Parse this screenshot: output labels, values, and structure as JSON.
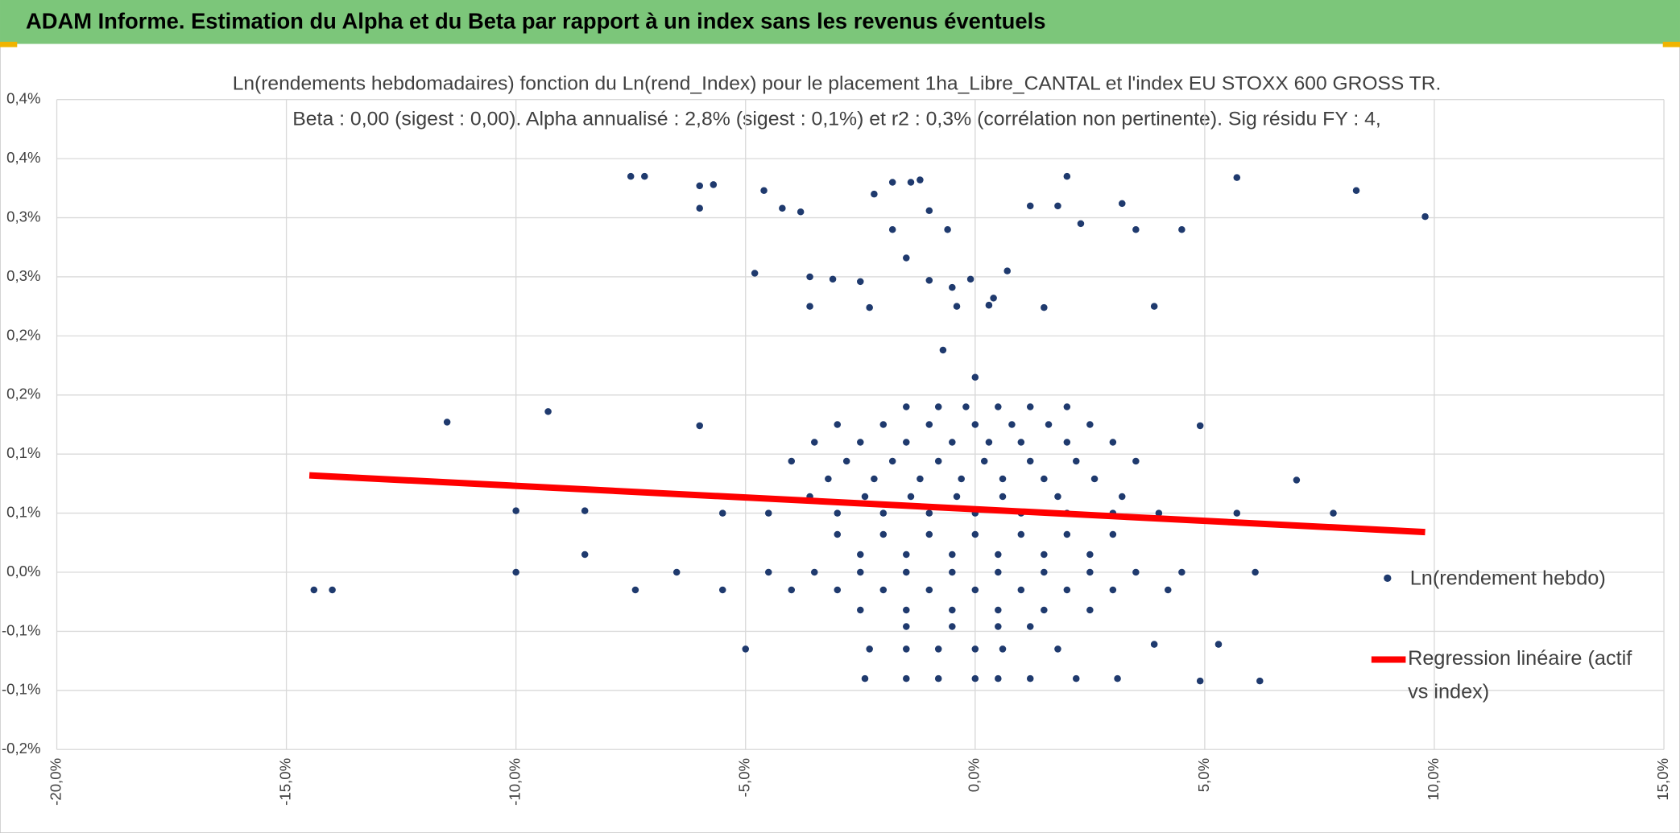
{
  "header": {
    "title": "ADAM Informe. Estimation du Alpha et du Beta par rapport à un index sans les revenus éventuels"
  },
  "chart_data": {
    "type": "scatter",
    "title": "Ln(rendements hebdomadaires) fonction du Ln(rend_Index) pour le placement 1ha_Libre_CANTAL et l'index EU STOXX 600 GROSS TR.",
    "subtitle": "Beta : 0,00 (sigest : 0,00). Alpha annualisé : 2,8% (sigest : 0,1%) et r2 : 0,3% (corrélation non pertinente). Sig résidu FY : 4,",
    "xlim": [
      -20,
      15
    ],
    "xticks": [
      {
        "value": -20,
        "label": "-20,0%"
      },
      {
        "value": -15,
        "label": "-15,0%"
      },
      {
        "value": -10,
        "label": "-10,0%"
      },
      {
        "value": -5,
        "label": "-5,0%"
      },
      {
        "value": 0,
        "label": "0,0%"
      },
      {
        "value": 5,
        "label": "5,0%"
      },
      {
        "value": 10,
        "label": "10,0%"
      },
      {
        "value": 15,
        "label": "15,0%"
      }
    ],
    "ylim": [
      -0.15,
      0.4
    ],
    "yticks": [
      {
        "value": -0.15,
        "label": "-0,2%"
      },
      {
        "value": -0.1,
        "label": "-0,1%"
      },
      {
        "value": -0.05,
        "label": "-0,1%"
      },
      {
        "value": 0,
        "label": "0,0%"
      },
      {
        "value": 0.05,
        "label": "0,1%"
      },
      {
        "value": 0.1,
        "label": "0,1%"
      },
      {
        "value": 0.15,
        "label": "0,2%"
      },
      {
        "value": 0.2,
        "label": "0,2%"
      },
      {
        "value": 0.25,
        "label": "0,3%"
      },
      {
        "value": 0.3,
        "label": "0,3%"
      },
      {
        "value": 0.35,
        "label": "0,4%"
      },
      {
        "value": 0.4,
        "label": "0,4%"
      }
    ],
    "grid": true,
    "legend": "right",
    "series": [
      {
        "name": "Ln(rendement hebdo)",
        "type": "scatter",
        "color": "#1f3a6e",
        "x": [
          -14.4,
          -14,
          -11.5,
          -9.3,
          -10,
          -10,
          -8.5,
          -8.5,
          -7.5,
          -7.2,
          -6,
          -6,
          -5.7,
          -4.6,
          -4.8,
          -4.2,
          -3.8,
          -3.6,
          -3.1,
          -2.5,
          -2.2,
          -1.8,
          -1.4,
          -1.8,
          -1.5,
          -1.0,
          -1.2,
          -0.6,
          -1.0,
          -0.5,
          -0.1,
          0.4,
          0.7,
          1.2,
          1.8,
          2.0,
          2.3,
          3.2,
          3.5,
          4.5,
          5.7,
          8.3,
          9.8,
          -0.7,
          0,
          3.9,
          -3.6,
          -2.3,
          -0.4,
          1.5,
          0.3,
          -5,
          3.9,
          5.3,
          4.9,
          6.2,
          7,
          7.8,
          4.9,
          5.7,
          6.1,
          -6,
          -7.4,
          -6.5,
          -5.5,
          -1.5,
          -0.8,
          -0.2,
          0.5,
          1.2,
          2.0,
          -3.0,
          -2.0,
          -1.0,
          0,
          0.8,
          1.6,
          2.5,
          -3.5,
          -2.5,
          -1.5,
          -0.5,
          0.3,
          1.0,
          2.0,
          3.0,
          -4.0,
          -2.8,
          -1.8,
          -0.8,
          0.2,
          1.2,
          2.2,
          3.5,
          -3.2,
          -2.2,
          -1.2,
          -0.3,
          0.6,
          1.5,
          2.6,
          -3.6,
          -2.4,
          -1.4,
          -0.4,
          0.6,
          1.8,
          3.2,
          -5.5,
          -4.5,
          -3.0,
          -2.0,
          -1.0,
          0,
          1.0,
          2.0,
          3.0,
          4.0,
          -3.0,
          -2.0,
          -1.0,
          0,
          1.0,
          2.0,
          3.0,
          -2.5,
          -1.5,
          -0.5,
          0.5,
          1.5,
          2.5,
          -4.5,
          -3.5,
          -2.5,
          -1.5,
          -0.5,
          0.5,
          1.5,
          2.5,
          3.5,
          4.5,
          -4.0,
          -3.0,
          -2.0,
          -1.0,
          0,
          1.0,
          2.0,
          3.0,
          4.2,
          -2.5,
          -1.5,
          -0.5,
          0.5,
          1.5,
          2.5,
          -1.5,
          -0.5,
          0.5,
          1.2,
          -2.3,
          -1.5,
          -0.8,
          0,
          0.6,
          1.8,
          -2.4,
          -1.5,
          -0.8,
          0,
          0.5,
          1.2,
          2.2,
          3.1
        ],
        "values": [
          -0.015,
          -0.015,
          0.127,
          0.136,
          0.052,
          0,
          0.052,
          0.015,
          0.335,
          0.335,
          0.327,
          0.308,
          0.328,
          0.323,
          0.253,
          0.308,
          0.305,
          0.25,
          0.248,
          0.246,
          0.32,
          0.33,
          0.33,
          0.29,
          0.266,
          0.306,
          0.332,
          0.29,
          0.247,
          0.241,
          0.248,
          0.232,
          0.255,
          0.31,
          0.31,
          0.335,
          0.295,
          0.312,
          0.29,
          0.29,
          0.334,
          0.323,
          0.301,
          0.188,
          0.165,
          0.225,
          0.225,
          0.224,
          0.225,
          0.224,
          0.226,
          -0.065,
          -0.061,
          -0.061,
          -0.092,
          -0.092,
          0.078,
          0.05,
          0.124,
          0.05,
          0,
          0.124,
          -0.015,
          0,
          -0.015,
          0.14,
          0.14,
          0.14,
          0.14,
          0.14,
          0.14,
          0.125,
          0.125,
          0.125,
          0.125,
          0.125,
          0.125,
          0.125,
          0.11,
          0.11,
          0.11,
          0.11,
          0.11,
          0.11,
          0.11,
          0.11,
          0.094,
          0.094,
          0.094,
          0.094,
          0.094,
          0.094,
          0.094,
          0.094,
          0.079,
          0.079,
          0.079,
          0.079,
          0.079,
          0.079,
          0.079,
          0.064,
          0.064,
          0.064,
          0.064,
          0.064,
          0.064,
          0.064,
          0.05,
          0.05,
          0.05,
          0.05,
          0.05,
          0.05,
          0.05,
          0.05,
          0.05,
          0.05,
          0.032,
          0.032,
          0.032,
          0.032,
          0.032,
          0.032,
          0.032,
          0.015,
          0.015,
          0.015,
          0.015,
          0.015,
          0.015,
          0,
          0,
          0,
          0,
          0,
          0,
          0,
          0,
          0,
          0,
          -0.015,
          -0.015,
          -0.015,
          -0.015,
          -0.015,
          -0.015,
          -0.015,
          -0.015,
          -0.015,
          -0.032,
          -0.032,
          -0.032,
          -0.032,
          -0.032,
          -0.032,
          -0.046,
          -0.046,
          -0.046,
          -0.046,
          -0.065,
          -0.065,
          -0.065,
          -0.065,
          -0.065,
          -0.065,
          -0.09,
          -0.09,
          -0.09,
          -0.09,
          -0.09,
          -0.09,
          -0.09,
          -0.09
        ]
      },
      {
        "name": "Regression linéaire (actif vs index)",
        "type": "line",
        "color": "#ff0000",
        "x": [
          -14.5,
          9.8
        ],
        "values": [
          0.082,
          0.034
        ]
      }
    ]
  }
}
